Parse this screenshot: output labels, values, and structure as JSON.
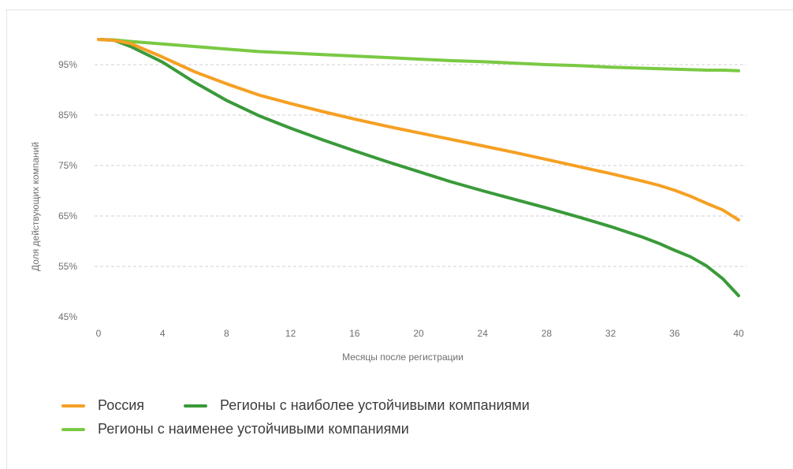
{
  "chart_data": {
    "type": "line",
    "title": "",
    "xlabel": "Месяцы после регистрации",
    "ylabel": "Доля действующих компаний",
    "xlim": [
      0,
      40
    ],
    "ylim": [
      45,
      100
    ],
    "x_ticks": [
      0,
      4,
      8,
      12,
      16,
      20,
      24,
      28,
      32,
      36,
      40
    ],
    "x_tick_labels": [
      "0",
      "4",
      "8",
      "12",
      "16",
      "20",
      "24",
      "28",
      "32",
      "36",
      "40"
    ],
    "y_ticks": [
      45,
      55,
      65,
      75,
      85,
      95
    ],
    "y_tick_labels": [
      "45%",
      "55%",
      "65%",
      "75%",
      "85%",
      "95%"
    ],
    "grid": "horizontal-dashed",
    "legend_position": "bottom-left",
    "x": [
      0,
      1,
      2,
      4,
      6,
      8,
      10,
      12,
      14,
      16,
      18,
      20,
      22,
      24,
      26,
      28,
      30,
      32,
      34,
      35,
      36,
      37,
      38,
      39,
      40
    ],
    "series": [
      {
        "name": "Россия",
        "color": "#f5a024",
        "values": [
          100,
          99.8,
          99.2,
          96.5,
          93.6,
          91.2,
          89,
          87.3,
          85.7,
          84.2,
          82.8,
          81.5,
          80.2,
          78.9,
          77.6,
          76.2,
          74.8,
          73.4,
          71.9,
          71.1,
          70.1,
          68.9,
          67.5,
          66.2,
          64.2
        ]
      },
      {
        "name": "Регионы с наиболее устойчивыми компаниями",
        "color": "#3a9a3a",
        "values": [
          100,
          99.8,
          98.6,
          95.5,
          91.5,
          87.9,
          84.9,
          82.4,
          80.1,
          77.9,
          75.8,
          73.8,
          71.8,
          70,
          68.3,
          66.6,
          64.8,
          62.9,
          60.8,
          59.6,
          58.2,
          56.9,
          55.1,
          52.6,
          49.2
        ]
      },
      {
        "name": "Регионы с наименее устойчивыми компаниями",
        "color": "#7ac943",
        "values": [
          100,
          99.9,
          99.6,
          99.1,
          98.6,
          98.1,
          97.6,
          97.3,
          97,
          96.7,
          96.4,
          96.1,
          95.8,
          95.6,
          95.3,
          95,
          94.8,
          94.5,
          94.3,
          94.2,
          94.1,
          94,
          93.9,
          93.9,
          93.8
        ]
      }
    ]
  }
}
